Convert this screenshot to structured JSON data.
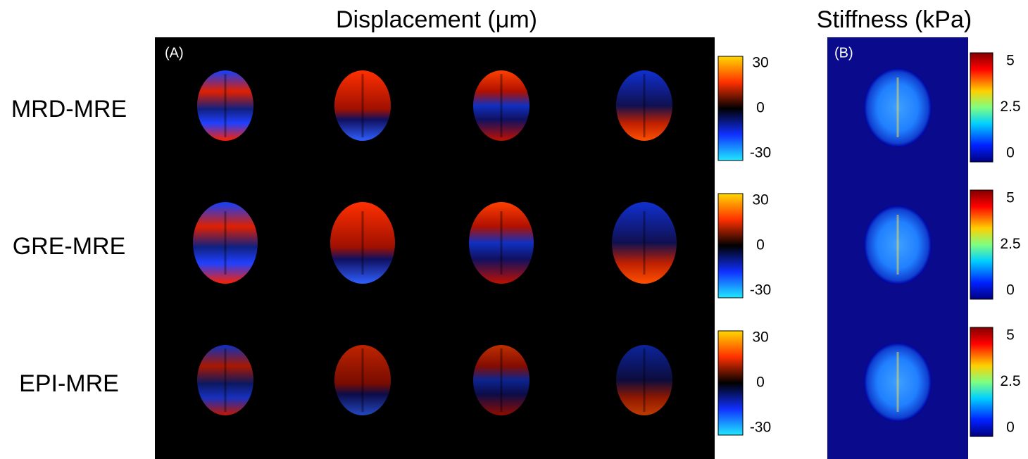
{
  "header": {
    "displacement_title": "Displacement (μm)",
    "stiffness_title": "Stiffness (kPa)"
  },
  "panels": {
    "a": "(A)",
    "b": "(B)"
  },
  "rows": [
    {
      "label": "MRD-MRE",
      "displacement_ticks": [
        "30",
        "0",
        "-30"
      ],
      "stiffness_ticks": [
        "5",
        "2.5",
        "0"
      ]
    },
    {
      "label": "GRE-MRE",
      "displacement_ticks": [
        "30",
        "0",
        "-30"
      ],
      "stiffness_ticks": [
        "5",
        "2.5",
        "0"
      ]
    },
    {
      "label": "EPI-MRE",
      "displacement_ticks": [
        "30",
        "0",
        "-30"
      ],
      "stiffness_ticks": [
        "5",
        "2.5",
        "0"
      ]
    }
  ]
}
